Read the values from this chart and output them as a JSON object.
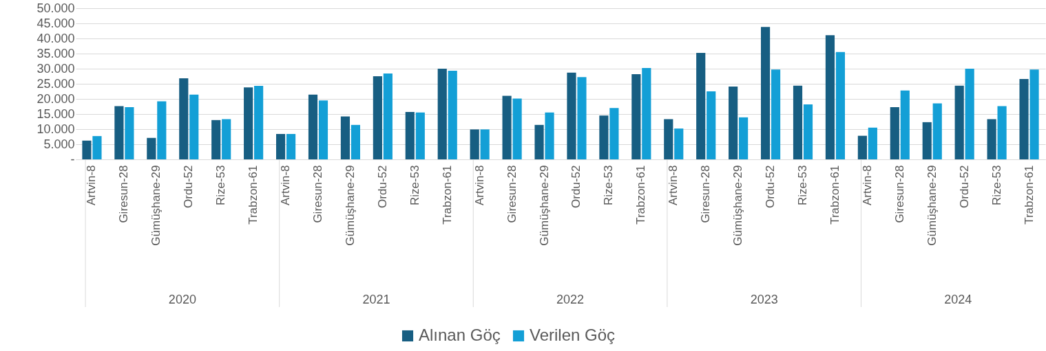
{
  "chart_data": {
    "type": "bar",
    "categories": [
      "Artvin-8",
      "Giresun-28",
      "Gümüşhane-29",
      "Ordu-52",
      "Rize-53",
      "Trabzon-61",
      "Artvin-8",
      "Giresun-28",
      "Gümüşhane-29",
      "Ordu-52",
      "Rize-53",
      "Trabzon-61",
      "Artvin-8",
      "Giresun-28",
      "Gümüşhane-29",
      "Ordu-52",
      "Rize-53",
      "Trabzon-61",
      "Artvin-8",
      "Giresun-28",
      "Gümüşhane-29",
      "Ordu-52",
      "Rize-53",
      "Trabzon-61",
      "Artvin-8",
      "Giresun-28",
      "Gümüşhane-29",
      "Ordu-52",
      "Rize-53",
      "Trabzon-61"
    ],
    "series": [
      {
        "name": "Alınan Göç",
        "color": "#175e82",
        "values": [
          6200,
          17600,
          7100,
          26800,
          13000,
          23800,
          8400,
          21400,
          14200,
          27500,
          15700,
          30000,
          9900,
          21000,
          11400,
          28700,
          14500,
          28200,
          13300,
          35200,
          24100,
          43800,
          24400,
          41100,
          7800,
          17300,
          12300,
          24400,
          13300,
          26600
        ]
      },
      {
        "name": "Verilen Göç",
        "color": "#139fd6",
        "values": [
          7700,
          17300,
          19200,
          21400,
          13300,
          24300,
          8400,
          19500,
          11400,
          28400,
          15500,
          29300,
          9900,
          20100,
          15500,
          27200,
          17000,
          30200,
          10200,
          22500,
          13900,
          29700,
          18200,
          35500,
          10500,
          22800,
          18500,
          30000,
          17600,
          29700
        ]
      }
    ],
    "annotations": [
      "2020",
      "2021",
      "2022",
      "2023",
      "2024"
    ],
    "ylim": [
      0,
      50000
    ],
    "yticks": [
      {
        "value": 0,
        "label": "-"
      },
      {
        "value": 5000,
        "label": "5.000"
      },
      {
        "value": 10000,
        "label": "10.000"
      },
      {
        "value": 15000,
        "label": "15.000"
      },
      {
        "value": 20000,
        "label": "20.000"
      },
      {
        "value": 25000,
        "label": "25.000"
      },
      {
        "value": 30000,
        "label": "30.000"
      },
      {
        "value": 35000,
        "label": "35.000"
      },
      {
        "value": 40000,
        "label": "40.000"
      },
      {
        "value": 45000,
        "label": "45.000"
      },
      {
        "value": 50000,
        "label": "50.000"
      }
    ],
    "grid": "y",
    "legend": "bottom"
  }
}
